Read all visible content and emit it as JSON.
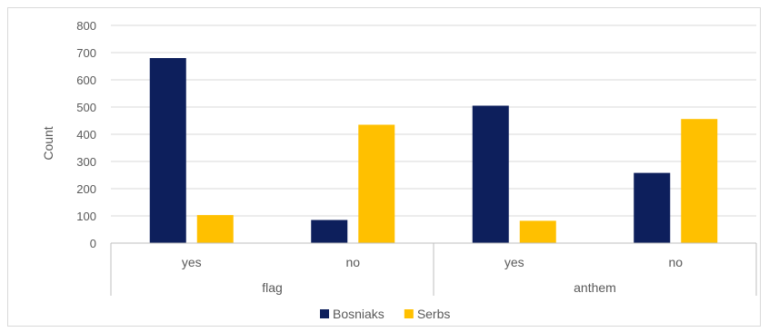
{
  "chart_data": {
    "type": "bar",
    "ylabel": "Count",
    "ylim": [
      0,
      800
    ],
    "yticks": [
      0,
      100,
      200,
      300,
      400,
      500,
      600,
      700,
      800
    ],
    "groups": [
      {
        "label": "flag",
        "categories": [
          "yes",
          "no"
        ]
      },
      {
        "label": "anthem",
        "categories": [
          "yes",
          "no"
        ]
      }
    ],
    "series": [
      {
        "name": "Bosniaks",
        "color": "#0d1f5c",
        "values": [
          680,
          85,
          505,
          258
        ]
      },
      {
        "name": "Serbs",
        "color": "#ffc000",
        "values": [
          103,
          435,
          82,
          456
        ]
      }
    ],
    "grid": true,
    "legend_position": "bottom"
  }
}
